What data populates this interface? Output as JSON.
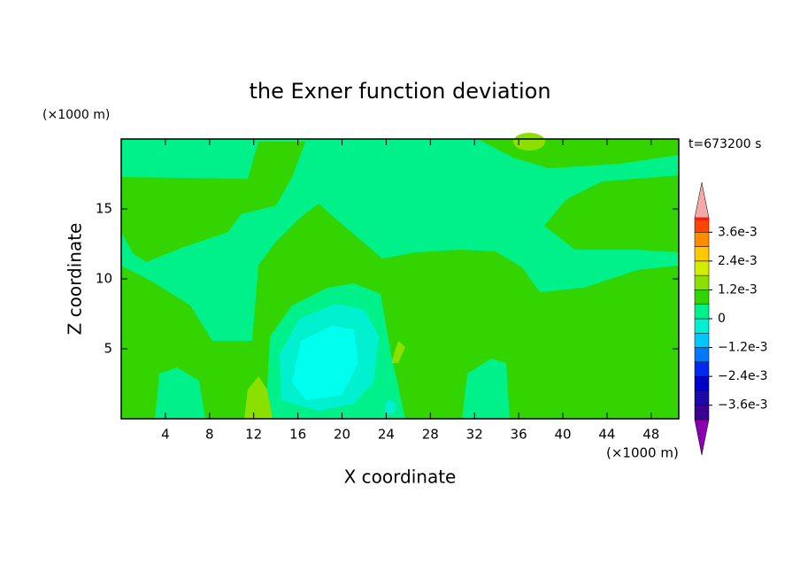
{
  "chart_data": {
    "type": "contour",
    "title": "the Exner function deviation",
    "xlabel": "X coordinate",
    "ylabel": "Z coordinate",
    "x_unit": "(×1000 m)",
    "y_unit": "(×1000 m)",
    "annotation": "t=673200 s",
    "xlim": [
      0,
      50.5
    ],
    "xticks": [
      4,
      8,
      12,
      16,
      20,
      24,
      28,
      32,
      36,
      40,
      44,
      48
    ],
    "ylim": [
      0,
      20
    ],
    "yticks": [
      5,
      10,
      15
    ],
    "colorbar": {
      "levels": [
        -0.0042,
        -0.0036,
        -0.003,
        -0.0024,
        -0.0018,
        -0.0012,
        -0.0006,
        0,
        0.0006,
        0.0012,
        0.0018,
        0.0024,
        0.003,
        0.0036,
        0.0042
      ],
      "colors": [
        "#3a0090",
        "#1a0aa8",
        "#0000c8",
        "#0028f0",
        "#0078ff",
        "#00c8ff",
        "#00f0d0",
        "#00f08a",
        "#33d400",
        "#8ce000",
        "#d2ee00",
        "#ffc800",
        "#ff8c00",
        "#ff4600"
      ],
      "top_color": "#ee2010",
      "over_color": "#f4a8a8",
      "under_color": "#8a00b0",
      "ticks": [
        {
          "value": 0.0036,
          "label": "3.6e-3"
        },
        {
          "value": 0.0024,
          "label": "2.4e-3"
        },
        {
          "value": 0.0012,
          "label": "1.2e-3"
        },
        0,
        {
          "value": -0.0012,
          "label": "−1.2e-3"
        },
        {
          "value": -0.0024,
          "label": "−2.4e-3"
        },
        {
          "value": -0.0036,
          "label": "−3.6e-3"
        }
      ]
    }
  }
}
